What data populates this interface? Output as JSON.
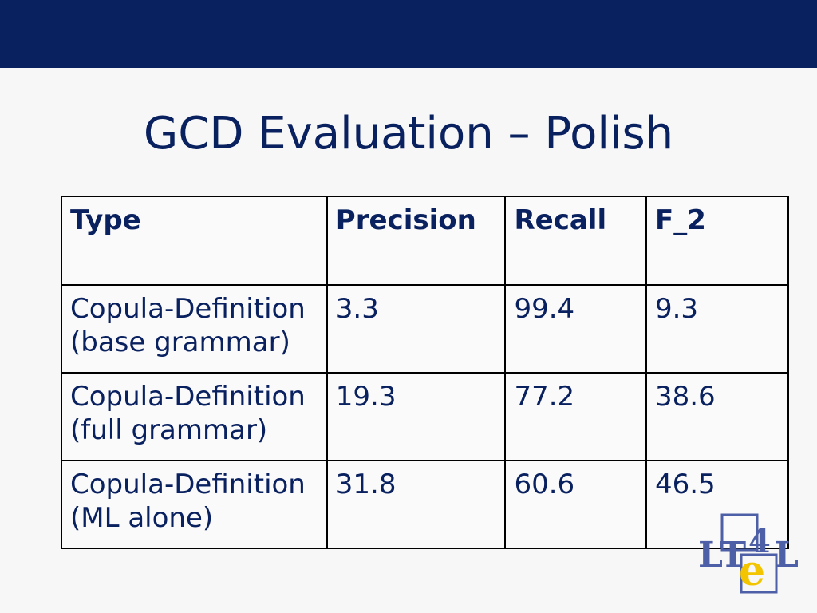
{
  "title": "GCD Evaluation – Polish",
  "table": {
    "headers": [
      "Type",
      "Precision",
      "Recall",
      "F_2"
    ],
    "rows": [
      {
        "type_line1": "Copula-Definition",
        "type_line2": "(base grammar)",
        "precision": "3.3",
        "recall": "99.4",
        "f2": "9.3"
      },
      {
        "type_line1": "Copula-Definition",
        "type_line2": "(full grammar)",
        "precision": "19.3",
        "recall": "77.2",
        "f2": "38.6"
      },
      {
        "type_line1": "Copula-Definition",
        "type_line2": "(ML alone)",
        "precision": "31.8",
        "recall": "60.6",
        "f2": "46.5"
      }
    ]
  },
  "logo": {
    "text_left": "LT",
    "text_four": "4",
    "text_e": "e",
    "text_right": "L"
  },
  "colors": {
    "header_bar": "#0a2160",
    "text": "#0a2160",
    "logo_blue": "#4d5fa6",
    "logo_yellow": "#f2c500"
  }
}
